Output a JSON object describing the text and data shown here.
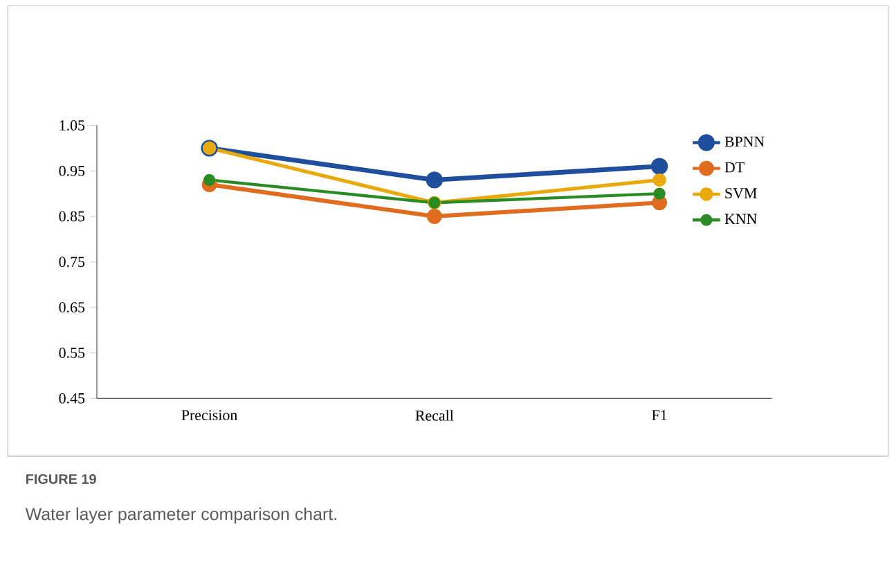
{
  "chart_data": {
    "type": "line",
    "categories": [
      "Precision",
      "Recall",
      "F1"
    ],
    "series": [
      {
        "name": "BPNN",
        "color": "#1f4e9c",
        "values": [
          1.0,
          0.93,
          0.96
        ]
      },
      {
        "name": "DT",
        "color": "#e06c1f",
        "values": [
          0.92,
          0.85,
          0.88
        ]
      },
      {
        "name": "SVM",
        "color": "#e8a90c",
        "values": [
          1.0,
          0.88,
          0.93
        ]
      },
      {
        "name": "KNN",
        "color": "#2a8a23",
        "values": [
          0.93,
          0.88,
          0.9
        ]
      }
    ],
    "ylim": [
      0.45,
      1.05
    ],
    "yticks": [
      0.45,
      0.55,
      0.65,
      0.75,
      0.85,
      0.95,
      1.05
    ],
    "grid": false,
    "legend": "top right",
    "marker": "circle",
    "line_style": "solid",
    "annotations": [
      "**FIGURE 19**",
      "Water layer parameter comparison chart."
    ]
  }
}
